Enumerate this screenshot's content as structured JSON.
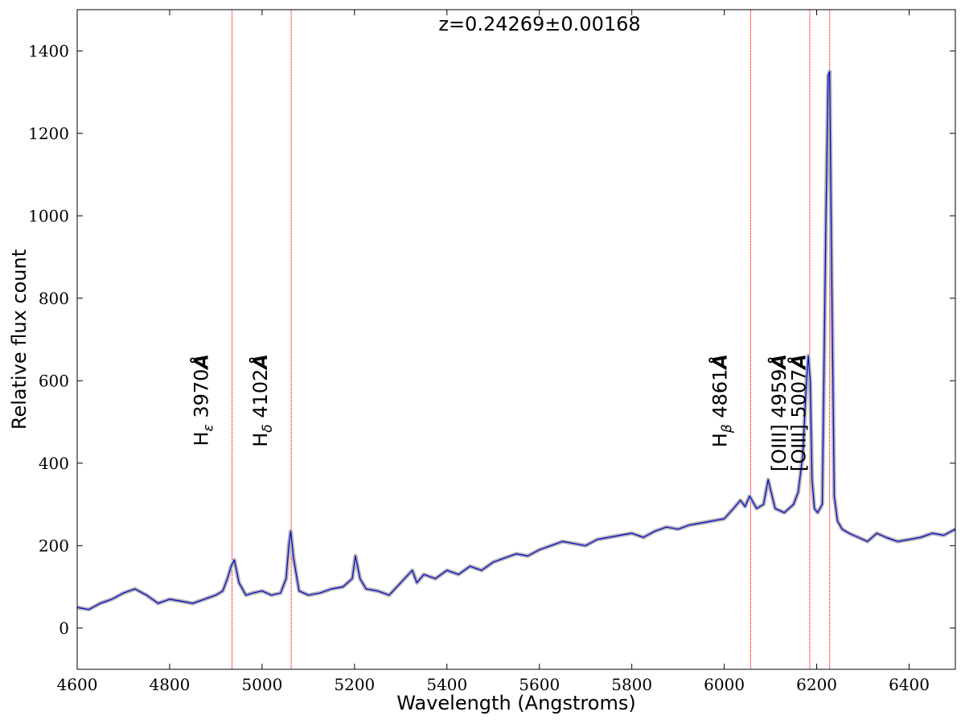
{
  "chart_data": {
    "type": "line",
    "title": "z=0.24269±0.00168",
    "xlabel": "Wavelength (Angstroms)",
    "ylabel": "Relative flux count",
    "xlim": [
      4600,
      6500
    ],
    "ylim": [
      -100,
      1500
    ],
    "xticks": [
      4600,
      4800,
      5000,
      5200,
      5400,
      5600,
      5800,
      6000,
      6200,
      6400
    ],
    "yticks": [
      0,
      200,
      400,
      600,
      800,
      1000,
      1200,
      1400
    ],
    "grid": false,
    "colors": {
      "spectrum": "#0000cc",
      "smoothed": "#b3b3b3",
      "line_marker": "#ff0000"
    },
    "series": [
      {
        "x": [
          4600,
          4625,
          4650,
          4675,
          4700,
          4725,
          4750,
          4775,
          4800,
          4825,
          4850,
          4875,
          4900,
          4915,
          4925,
          4933,
          4940,
          4950,
          4965,
          4980,
          5000,
          5020,
          5040,
          5052,
          5058,
          5062,
          5068,
          5080,
          5100,
          5125,
          5150,
          5175,
          5195,
          5202,
          5212,
          5225,
          5250,
          5275,
          5300,
          5325,
          5335,
          5350,
          5375,
          5400,
          5425,
          5450,
          5475,
          5500,
          5525,
          5550,
          5575,
          5600,
          5625,
          5650,
          5675,
          5700,
          5725,
          5750,
          5775,
          5800,
          5825,
          5850,
          5875,
          5900,
          5925,
          5950,
          5975,
          6000,
          6020,
          6035,
          6045,
          6055,
          6070,
          6085,
          6095,
          6110,
          6130,
          6150,
          6160,
          6170,
          6178,
          6182,
          6186,
          6190,
          6195,
          6202,
          6212,
          6220,
          6225,
          6228,
          6232,
          6238,
          6245,
          6255,
          6270,
          6290,
          6310,
          6330,
          6350,
          6375,
          6400,
          6425,
          6450,
          6475,
          6500
        ],
        "y": [
          50,
          45,
          60,
          70,
          85,
          95,
          80,
          60,
          70,
          65,
          60,
          70,
          80,
          90,
          120,
          150,
          165,
          110,
          80,
          85,
          90,
          80,
          85,
          120,
          200,
          235,
          170,
          90,
          80,
          85,
          95,
          100,
          120,
          175,
          120,
          95,
          90,
          80,
          110,
          140,
          110,
          130,
          120,
          140,
          130,
          150,
          140,
          160,
          170,
          180,
          175,
          190,
          200,
          210,
          205,
          200,
          215,
          220,
          225,
          230,
          220,
          235,
          245,
          240,
          250,
          255,
          260,
          265,
          290,
          310,
          295,
          320,
          290,
          300,
          360,
          290,
          280,
          300,
          330,
          420,
          600,
          660,
          600,
          360,
          290,
          280,
          300,
          1000,
          1340,
          1350,
          900,
          320,
          260,
          240,
          230,
          220,
          210,
          230,
          220,
          210,
          215,
          220,
          230,
          225,
          240
        ]
      }
    ],
    "line_markers": [
      {
        "x": 4935,
        "label": "H",
        "sub": "ε",
        "wave": "3970",
        "unit": "Å"
      },
      {
        "x": 5063,
        "label": "H",
        "sub": "δ",
        "wave": "4102",
        "unit": "Å"
      },
      {
        "x": 6057,
        "label": "H",
        "sub": "β",
        "wave": "4861",
        "unit": "Å"
      },
      {
        "x": 6185,
        "label": "[OIII]",
        "sub": "",
        "wave": "4959",
        "unit": "Å"
      },
      {
        "x": 6228,
        "label": "[OIII]",
        "sub": "",
        "wave": "5007",
        "unit": "Å"
      }
    ]
  }
}
